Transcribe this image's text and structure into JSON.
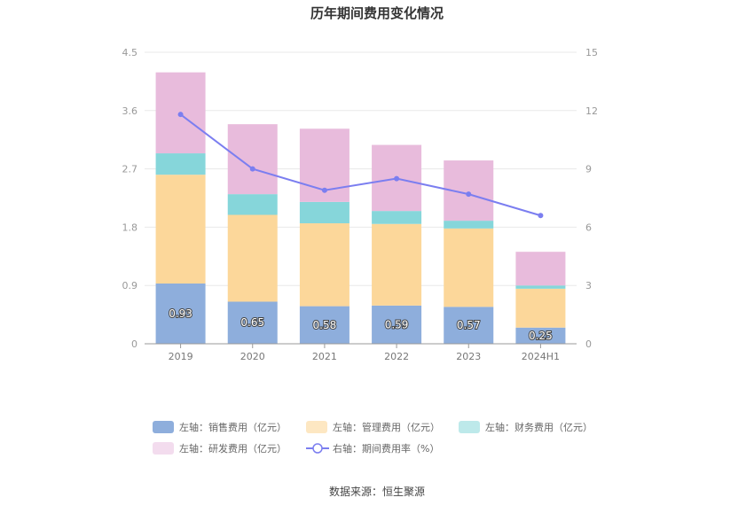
{
  "chart_data": {
    "type": "bar",
    "stacked": true,
    "title": "历年期间费用变化情况",
    "categories": [
      "2019",
      "2020",
      "2021",
      "2022",
      "2023",
      "2024H1"
    ],
    "y_left": {
      "min": 0,
      "max": 4.5,
      "ticks": [
        "0",
        "0.9",
        "1.8",
        "2.7",
        "3.6",
        "4.5"
      ]
    },
    "y_right": {
      "min": 0,
      "max": 15,
      "ticks": [
        "0",
        "3",
        "6",
        "9",
        "12",
        "15"
      ]
    },
    "series": [
      {
        "name": "左轴：销售费用（亿元）",
        "axis": "left",
        "color": "#8eaedc",
        "values": [
          0.93,
          0.65,
          0.58,
          0.59,
          0.57,
          0.25
        ],
        "labels": [
          "0.93",
          "0.65",
          "0.58",
          "0.59",
          "0.57",
          "0.25"
        ]
      },
      {
        "name": "左轴：管理费用（亿元）",
        "axis": "left",
        "color": "#fcd79a",
        "values": [
          1.68,
          1.34,
          1.28,
          1.26,
          1.21,
          0.6
        ]
      },
      {
        "name": "左轴：财务费用（亿元）",
        "axis": "left",
        "color": "#86d6da",
        "values": [
          0.33,
          0.32,
          0.33,
          0.2,
          0.12,
          0.05
        ]
      },
      {
        "name": "左轴：研发费用（亿元）",
        "axis": "left",
        "color": "#e8bbdc",
        "values": [
          1.25,
          1.08,
          1.13,
          1.02,
          0.93,
          0.52
        ]
      },
      {
        "name": "右轴：期间费用率（%）",
        "axis": "right",
        "type": "line",
        "color": "#7b7ef0",
        "values": [
          11.8,
          9.0,
          7.9,
          8.5,
          7.7,
          6.6
        ]
      }
    ],
    "legend": {
      "position": "bottom",
      "swatch_colors": [
        "#8eaedc",
        "#fde7c2",
        "#bde9ea",
        "#f3dcee",
        "#7b7ef0"
      ]
    },
    "grid": true
  },
  "footer": {
    "source": "数据来源：恒生聚源"
  }
}
